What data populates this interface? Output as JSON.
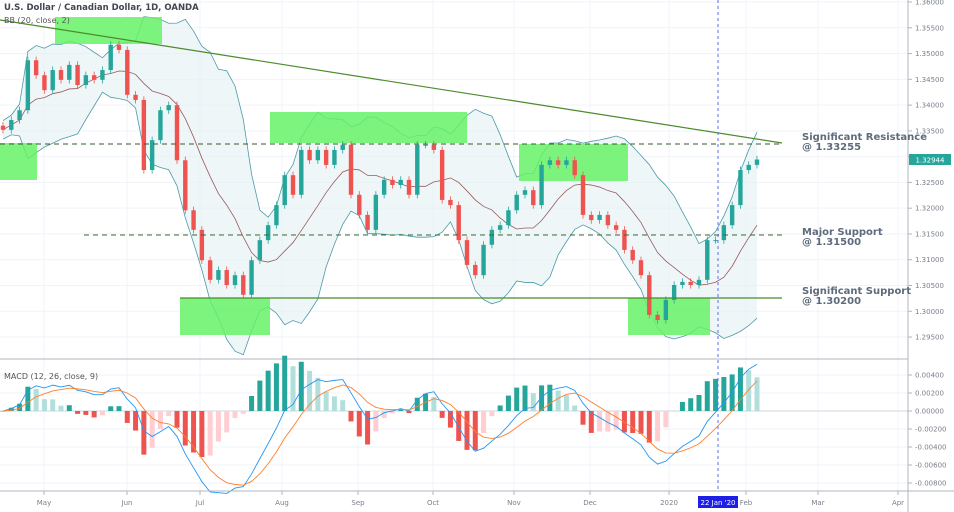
{
  "header": {
    "title": "U.S. Dollar / Canadian Dollar, 1D, OANDA",
    "bb_label": "BB (20, close, 2)",
    "macd_label": "MACD (12, 26, close, 9)"
  },
  "annotations": [
    {
      "title": "Significant Resistance",
      "value": "@ 1.33255"
    },
    {
      "title": "Major Support",
      "value": "@ 1.31500"
    },
    {
      "title": "Significant Support",
      "value": "@ 1.30200"
    }
  ],
  "crosshair_date": "22 Jan '20",
  "last_price": "1.32944",
  "colors": {
    "up": "#26a69a",
    "down": "#ef5350",
    "zone": "#66f266",
    "trendline": "#4b8b2b",
    "macd": "#2196f3",
    "signal": "#ff7f2a",
    "crosshair": "#2962ff"
  },
  "chart_data": [
    {
      "type": "candlestick",
      "title": "U.S. Dollar / Canadian Dollar, 1D, OANDA",
      "close": [
        1.3352,
        1.3371,
        1.339,
        1.3487,
        1.3458,
        1.3429,
        1.3468,
        1.3449,
        1.3478,
        1.3439,
        1.3458,
        1.3449,
        1.3468,
        1.3517,
        1.3507,
        1.342,
        1.341,
        1.3274,
        1.3332,
        1.339,
        1.34,
        1.3293,
        1.3196,
        1.3158,
        1.3099,
        1.3061,
        1.308,
        1.3051,
        1.307,
        1.3032,
        1.3099,
        1.3138,
        1.3167,
        1.3206,
        1.3264,
        1.3226,
        1.3313,
        1.3293,
        1.3313,
        1.3284,
        1.3313,
        1.3323,
        1.3226,
        1.3187,
        1.3158,
        1.3226,
        1.3255,
        1.3245,
        1.3255,
        1.3226,
        1.3323,
        1.3323,
        1.3313,
        1.3216,
        1.3206,
        1.3138,
        1.309,
        1.307,
        1.3129,
        1.3158,
        1.3167,
        1.3196,
        1.3226,
        1.3235,
        1.3206,
        1.3284,
        1.3293,
        1.3284,
        1.3293,
        1.3264,
        1.3187,
        1.3177,
        1.3187,
        1.3167,
        1.3158,
        1.3119,
        1.3099,
        1.307,
        1.2993,
        1.2983,
        1.3022,
        1.3051,
        1.3057,
        1.3051,
        1.3061,
        1.3138,
        1.3138,
        1.3167,
        1.3206,
        1.3274,
        1.3284,
        1.32944
      ],
      "y_ticks": [
        "1.36000",
        "1.35500",
        "1.35000",
        "1.34500",
        "1.34000",
        "1.33500",
        "1.33000",
        "1.32500",
        "1.32000",
        "1.31500",
        "1.31000",
        "1.30500",
        "1.30000",
        "1.29500"
      ],
      "ylim": [
        1.293,
        1.3605
      ],
      "x_ticks": [
        "May",
        "Jun",
        "Jul",
        "Aug",
        "Sep",
        "Oct",
        "Nov",
        "Dec",
        "2020",
        "Feb",
        "Mar",
        "Apr"
      ],
      "levels": [
        1.33255,
        1.315,
        1.302
      ],
      "indicator": "Bollinger Bands (20, close, 2)"
    },
    {
      "type": "macd",
      "title": "MACD (12, 26, close, 9)",
      "y_ticks": [
        "0.00400",
        "0.00200",
        "0.00000",
        "-0.00200",
        "-0.00400",
        "-0.00600",
        "-0.00800"
      ],
      "ylim": [
        -0.0088,
        0.0056
      ]
    }
  ]
}
